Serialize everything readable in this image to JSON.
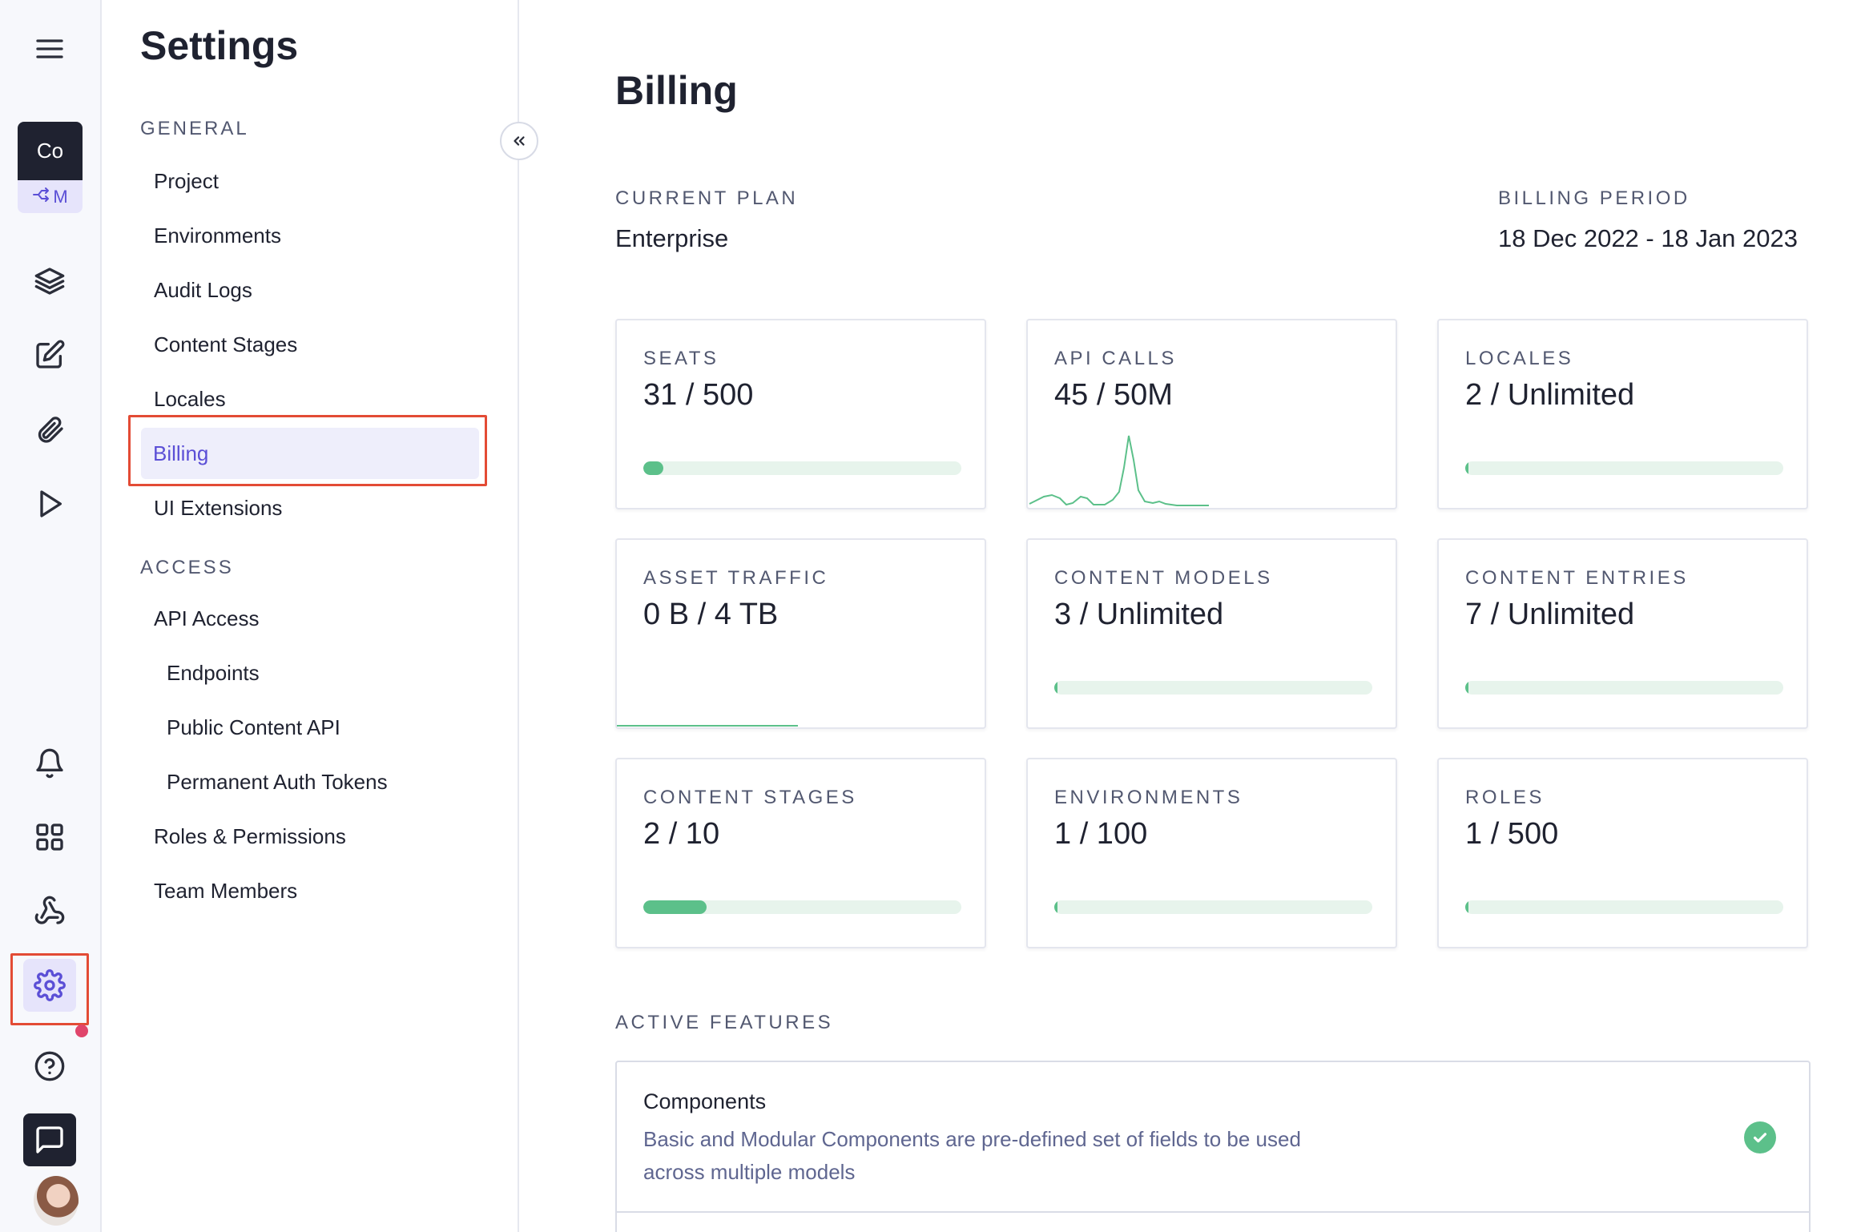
{
  "rail": {
    "project_badge_top": "Co",
    "project_badge_bottom": "M",
    "items": [
      "menu-icon",
      "layers-icon",
      "edit-icon",
      "paperclip-icon",
      "play-icon",
      "bell-icon",
      "apps-icon",
      "webhook-icon",
      "gear-icon",
      "help-icon",
      "chat-icon"
    ],
    "active_item": "gear-icon"
  },
  "nav": {
    "title": "Settings",
    "sections": [
      {
        "label": "GENERAL",
        "items": [
          "Project",
          "Environments",
          "Audit Logs",
          "Content Stages",
          "Locales",
          "Billing",
          "UI Extensions"
        ]
      },
      {
        "label": "ACCESS",
        "items": [
          "API Access",
          "Endpoints",
          "Public Content API",
          "Permanent Auth Tokens",
          "Roles & Permissions",
          "Team Members"
        ]
      }
    ],
    "active_item": "Billing"
  },
  "billing": {
    "title": "Billing",
    "current_plan_label": "CURRENT PLAN",
    "current_plan": "Enterprise",
    "billing_period_label": "BILLING PERIOD",
    "billing_period": "18 Dec 2022 - 18 Jan 2023",
    "usage": [
      {
        "label": "SEATS",
        "value": "31 / 500",
        "progress": 0.062
      },
      {
        "label": "API CALLS",
        "value": "45 / 50M",
        "progress": null
      },
      {
        "label": "LOCALES",
        "value": "2 / Unlimited",
        "progress": 0.0
      },
      {
        "label": "ASSET TRAFFIC",
        "value": "0 B / 4 TB",
        "progress": null
      },
      {
        "label": "CONTENT MODELS",
        "value": "3 / Unlimited",
        "progress": 0.0
      },
      {
        "label": "CONTENT ENTRIES",
        "value": "7 / Unlimited",
        "progress": 0.0
      },
      {
        "label": "CONTENT STAGES",
        "value": "2 / 10",
        "progress": 0.2
      },
      {
        "label": "ENVIRONMENTS",
        "value": "1 / 100",
        "progress": 0.01
      },
      {
        "label": "ROLES",
        "value": "1 / 500",
        "progress": 0.002
      }
    ],
    "active_features_label": "ACTIVE FEATURES",
    "features": [
      {
        "name": "Components",
        "description": "Basic and Modular Components are pre-defined set of fields to be used across multiple models",
        "enabled": true
      }
    ]
  },
  "colors": {
    "accent": "#5b4fd6",
    "progress": "#5cc08a",
    "highlight_box": "#e34b35",
    "notification_dot": "#e0456b"
  }
}
